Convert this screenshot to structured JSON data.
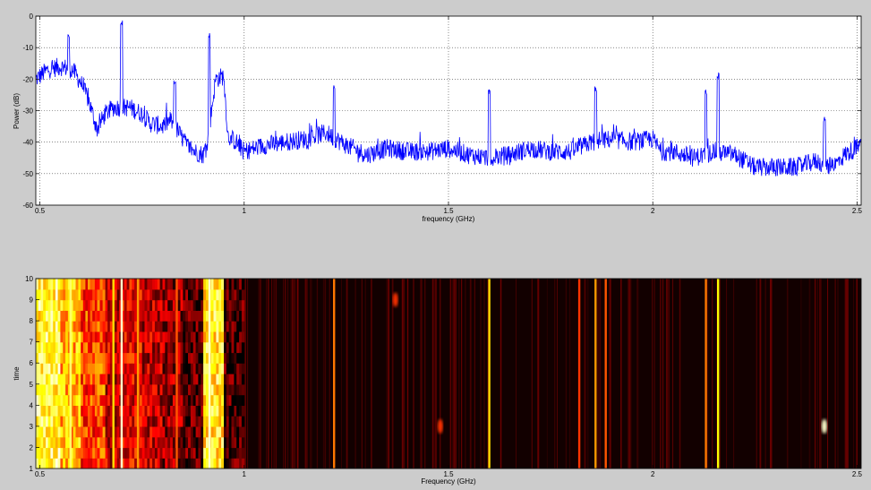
{
  "colors": {
    "figure_bg": "#cccccc",
    "axes_bg": "#ffffff",
    "line": "#0000ff",
    "grid": "#404040",
    "colormap": "hot",
    "spectrogram_bg": "#120000"
  },
  "chart_data": [
    {
      "type": "line",
      "title": "",
      "xlabel": "frequency (GHz)",
      "ylabel": "Power (dB)",
      "xlim": [
        0.49,
        2.51
      ],
      "ylim": [
        -60,
        0
      ],
      "xticks": [
        0.5,
        1,
        1.5,
        2,
        2.5
      ],
      "xtick_labels": [
        "0.5",
        "1",
        "1.5",
        "2",
        "2.5"
      ],
      "yticks": [
        -60,
        -50,
        -40,
        -30,
        -20,
        -10,
        0
      ],
      "ytick_labels": [
        "-60",
        "-50",
        "-40",
        "-30",
        "-20",
        "-10",
        "0"
      ],
      "grid": true,
      "noise_amplitude_db": 3,
      "series": [
        {
          "x": [
            0.49,
            0.52,
            0.55,
            0.58,
            0.6,
            0.62,
            0.64,
            0.66,
            0.68,
            0.72,
            0.75,
            0.77,
            0.8,
            0.82,
            0.84,
            0.86,
            0.88,
            0.9,
            0.91,
            0.93,
            0.95,
            0.96,
            0.98,
            1.0,
            1.05,
            1.1,
            1.15,
            1.2,
            1.25,
            1.3,
            1.35,
            1.4,
            1.45,
            1.5,
            1.55,
            1.6,
            1.65,
            1.7,
            1.75,
            1.8,
            1.85,
            1.9,
            1.95,
            2.0,
            2.02,
            2.05,
            2.1,
            2.15,
            2.2,
            2.25,
            2.3,
            2.35,
            2.4,
            2.44,
            2.47,
            2.51
          ],
          "y": [
            -20,
            -17,
            -16,
            -17,
            -21,
            -27,
            -36,
            -31,
            -29,
            -29,
            -31,
            -34,
            -35,
            -33,
            -37,
            -41,
            -43,
            -44,
            -40,
            -20,
            -19,
            -38,
            -40,
            -43,
            -41,
            -40,
            -39,
            -37,
            -41,
            -44,
            -42,
            -43,
            -43,
            -42,
            -44,
            -45,
            -44,
            -42,
            -43,
            -43,
            -40,
            -39,
            -40,
            -39,
            -43,
            -43,
            -45,
            -43,
            -44,
            -48,
            -48,
            -48,
            -46,
            -48,
            -44,
            -41
          ]
        }
      ],
      "peaks": [
        {
          "x": 0.57,
          "y": -7
        },
        {
          "x": 0.7,
          "y": -3
        },
        {
          "x": 0.83,
          "y": -22
        },
        {
          "x": 0.915,
          "y": -7
        },
        {
          "x": 1.22,
          "y": -24
        },
        {
          "x": 1.6,
          "y": -25
        },
        {
          "x": 1.86,
          "y": -24
        },
        {
          "x": 2.13,
          "y": -25
        },
        {
          "x": 2.16,
          "y": -20
        },
        {
          "x": 2.42,
          "y": -34
        }
      ]
    },
    {
      "type": "heatmap",
      "title": "",
      "xlabel": "Frequency (GHz)",
      "ylabel": "time",
      "xlim": [
        0.49,
        2.51
      ],
      "ylim": [
        1,
        10
      ],
      "xticks": [
        0.5,
        1,
        1.5,
        2,
        2.5
      ],
      "xtick_labels": [
        "0.5",
        "1",
        "1.5",
        "2",
        "2.5"
      ],
      "yticks": [
        1,
        2,
        3,
        4,
        5,
        6,
        7,
        8,
        9,
        10
      ],
      "ytick_labels": [
        "1",
        "2",
        "3",
        "4",
        "5",
        "6",
        "7",
        "8",
        "9",
        "10"
      ],
      "bands": [
        {
          "x0": 0.49,
          "x1": 0.55,
          "intensity": 0.8
        },
        {
          "x0": 0.55,
          "x1": 0.6,
          "intensity": 0.65
        },
        {
          "x0": 0.6,
          "x1": 0.64,
          "intensity": 0.45
        },
        {
          "x0": 0.64,
          "x1": 0.66,
          "intensity": 0.5
        },
        {
          "x0": 0.66,
          "x1": 0.7,
          "intensity": 0.3
        },
        {
          "x0": 0.7,
          "x1": 0.75,
          "intensity": 0.35
        },
        {
          "x0": 0.75,
          "x1": 0.8,
          "intensity": 0.28
        },
        {
          "x0": 0.8,
          "x1": 0.85,
          "intensity": 0.22
        },
        {
          "x0": 0.85,
          "x1": 0.9,
          "intensity": 0.12
        },
        {
          "x0": 0.9,
          "x1": 0.95,
          "intensity": 0.75
        },
        {
          "x0": 0.95,
          "x1": 1.0,
          "intensity": 0.1
        }
      ],
      "lines": [
        {
          "x": 0.575,
          "intensity": 0.85
        },
        {
          "x": 0.68,
          "intensity": 0.7
        },
        {
          "x": 0.7,
          "intensity": 0.95
        },
        {
          "x": 0.74,
          "intensity": 0.6
        },
        {
          "x": 0.835,
          "intensity": 0.5
        },
        {
          "x": 0.915,
          "intensity": 0.95
        },
        {
          "x": 1.22,
          "intensity": 0.55
        },
        {
          "x": 1.6,
          "intensity": 0.7
        },
        {
          "x": 1.82,
          "intensity": 0.45
        },
        {
          "x": 1.86,
          "intensity": 0.6
        },
        {
          "x": 1.885,
          "intensity": 0.5
        },
        {
          "x": 2.13,
          "intensity": 0.55
        },
        {
          "x": 2.16,
          "intensity": 0.75
        }
      ],
      "spots": [
        {
          "x": 2.42,
          "t": 3,
          "intensity": 0.95
        },
        {
          "x": 1.48,
          "t": 3,
          "intensity": 0.45
        },
        {
          "x": 1.37,
          "t": 9,
          "intensity": 0.45
        }
      ]
    }
  ]
}
